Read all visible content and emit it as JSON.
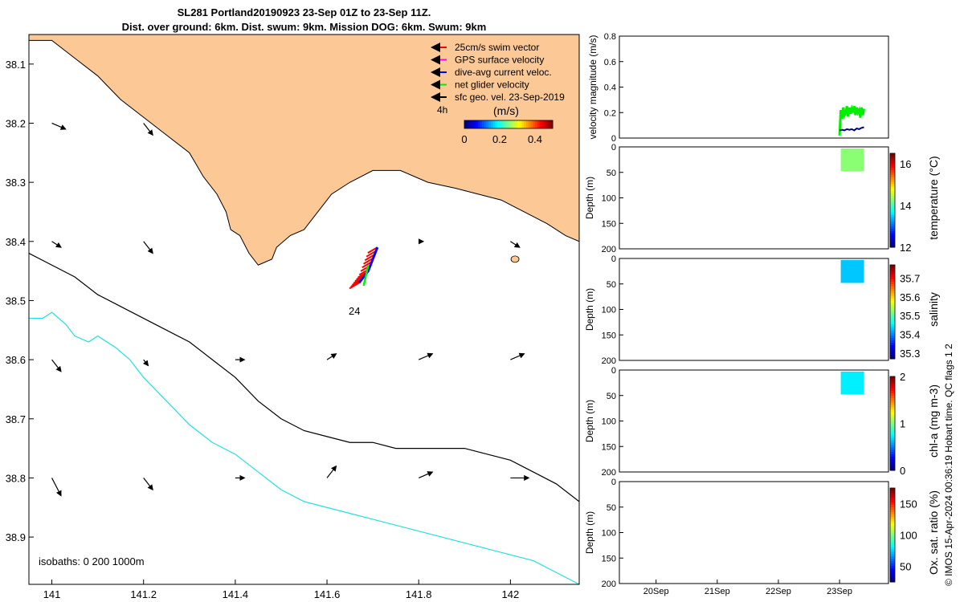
{
  "title_line1": "SL281 Portland20190923 23-Sep 01Z to 23-Sep 11Z.",
  "title_line2": "Dist. over ground: 6km. Dist. swum: 9km. Mission DOG: 6km. Swum: 9km",
  "stamp": "© IMOS 15-Apr-2024 00:36:19 Hobart time. QC flags 1  2",
  "colors": {
    "land": "#fcc896",
    "swim": "#ff0000",
    "gps": "#ff00ff",
    "dac": "#0000ff",
    "net": "#00ee00",
    "geo": "#000000",
    "isobath200": "#000000",
    "isobath1000": "#22e0e0"
  },
  "chart_data": [
    {
      "type": "map",
      "xlim": [
        140.95,
        142.15
      ],
      "ylim": [
        38.05,
        38.98
      ],
      "y_reversed": true,
      "xticks": [
        "141",
        "141.2",
        "141.4",
        "141.6",
        "141.8",
        "142"
      ],
      "yticks": [
        "38.1",
        "38.2",
        "38.3",
        "38.4",
        "38.5",
        "38.6",
        "38.7",
        "38.8",
        "38.9"
      ],
      "legend": [
        "25cm/s swim vector",
        "GPS surface velocity",
        "dive-avg current veloc.",
        "net glider velocity",
        "sfc geo. vel. 23-Sep-2019"
      ],
      "legend_extra": "4h",
      "colorbar_label": "(m/s)",
      "colorbar_ticks": [
        "0",
        "0.2",
        "0.4"
      ],
      "track_label": "24",
      "isobath_label": "isobaths: 0   200  1000m",
      "coast": [
        [
          140.95,
          38.06
        ],
        [
          141.0,
          38.06
        ],
        [
          141.05,
          38.09
        ],
        [
          141.1,
          38.12
        ],
        [
          141.15,
          38.16
        ],
        [
          141.2,
          38.19
        ],
        [
          141.25,
          38.22
        ],
        [
          141.3,
          38.25
        ],
        [
          141.33,
          38.29
        ],
        [
          141.36,
          38.32
        ],
        [
          141.38,
          38.35
        ],
        [
          141.39,
          38.38
        ],
        [
          141.41,
          38.39
        ],
        [
          141.43,
          38.42
        ],
        [
          141.45,
          38.44
        ],
        [
          141.48,
          38.43
        ],
        [
          141.49,
          38.41
        ],
        [
          141.52,
          38.39
        ],
        [
          141.55,
          38.38
        ],
        [
          141.58,
          38.35
        ],
        [
          141.61,
          38.32
        ],
        [
          141.65,
          38.3
        ],
        [
          141.7,
          38.28
        ],
        [
          141.76,
          38.28
        ],
        [
          141.82,
          38.3
        ],
        [
          141.88,
          38.31
        ],
        [
          141.93,
          38.32
        ],
        [
          141.98,
          38.33
        ],
        [
          142.03,
          38.35
        ],
        [
          142.08,
          38.37
        ],
        [
          142.12,
          38.39
        ],
        [
          142.15,
          38.4
        ]
      ],
      "isobath_200": [
        [
          140.95,
          38.42
        ],
        [
          141.0,
          38.44
        ],
        [
          141.05,
          38.46
        ],
        [
          141.1,
          38.49
        ],
        [
          141.15,
          38.51
        ],
        [
          141.2,
          38.53
        ],
        [
          141.25,
          38.55
        ],
        [
          141.3,
          38.57
        ],
        [
          141.35,
          38.6
        ],
        [
          141.4,
          38.63
        ],
        [
          141.45,
          38.67
        ],
        [
          141.5,
          38.7
        ],
        [
          141.55,
          38.72
        ],
        [
          141.6,
          38.73
        ],
        [
          141.65,
          38.74
        ],
        [
          141.7,
          38.74
        ],
        [
          141.75,
          38.75
        ],
        [
          141.8,
          38.75
        ],
        [
          141.85,
          38.75
        ],
        [
          141.9,
          38.75
        ],
        [
          141.95,
          38.76
        ],
        [
          142.0,
          38.77
        ],
        [
          142.05,
          38.79
        ],
        [
          142.1,
          38.81
        ],
        [
          142.15,
          38.84
        ]
      ],
      "isobath_1000": [
        [
          140.95,
          38.53
        ],
        [
          140.98,
          38.53
        ],
        [
          141.0,
          38.52
        ],
        [
          141.03,
          38.54
        ],
        [
          141.05,
          38.56
        ],
        [
          141.08,
          38.57
        ],
        [
          141.1,
          38.56
        ],
        [
          141.14,
          38.58
        ],
        [
          141.17,
          38.6
        ],
        [
          141.2,
          38.63
        ],
        [
          141.25,
          38.67
        ],
        [
          141.3,
          38.71
        ],
        [
          141.35,
          38.74
        ],
        [
          141.4,
          38.76
        ],
        [
          141.45,
          38.79
        ],
        [
          141.5,
          38.82
        ],
        [
          141.55,
          38.84
        ],
        [
          141.6,
          38.85
        ],
        [
          141.65,
          38.86
        ],
        [
          141.7,
          38.87
        ],
        [
          141.75,
          38.88
        ],
        [
          141.8,
          38.89
        ],
        [
          141.85,
          38.9
        ],
        [
          141.9,
          38.91
        ],
        [
          141.95,
          38.92
        ],
        [
          142.0,
          38.93
        ],
        [
          142.05,
          38.94
        ],
        [
          142.1,
          38.96
        ],
        [
          142.15,
          38.98
        ]
      ],
      "geo_vectors": [
        [
          141.0,
          38.2,
          0.03,
          0.01
        ],
        [
          141.2,
          38.2,
          0.02,
          0.02
        ],
        [
          141.0,
          38.4,
          0.02,
          0.01
        ],
        [
          141.2,
          38.4,
          0.02,
          0.02
        ],
        [
          141.8,
          38.4,
          0.01,
          0.0
        ],
        [
          142.0,
          38.4,
          0.02,
          0.01
        ],
        [
          141.0,
          38.6,
          0.02,
          0.02
        ],
        [
          141.2,
          38.6,
          0.01,
          0.01
        ],
        [
          141.4,
          38.6,
          0.02,
          0.0
        ],
        [
          141.6,
          38.6,
          0.02,
          -0.01
        ],
        [
          141.8,
          38.6,
          0.03,
          -0.01
        ],
        [
          142.0,
          38.6,
          0.03,
          -0.01
        ],
        [
          141.0,
          38.8,
          0.02,
          0.03
        ],
        [
          141.2,
          38.8,
          0.02,
          0.02
        ],
        [
          141.4,
          38.8,
          0.02,
          0.0
        ],
        [
          141.6,
          38.8,
          0.02,
          -0.02
        ],
        [
          141.8,
          38.8,
          0.03,
          -0.01
        ],
        [
          142.0,
          38.8,
          0.04,
          0.0
        ]
      ],
      "glider_track": [
        [
          141.71,
          38.41
        ],
        [
          141.7,
          38.43
        ],
        [
          141.69,
          38.45
        ],
        [
          141.68,
          38.46
        ],
        [
          141.67,
          38.47
        ]
      ]
    },
    {
      "type": "line",
      "ylabel": "velocity magnitude (m/s)",
      "ylim": [
        0,
        0.8
      ],
      "yticks": [
        "0",
        "0.2",
        "0.4",
        "0.6",
        "0.8"
      ],
      "xlim": [
        19.4,
        23.8
      ],
      "series": [
        {
          "color": "#00ee00",
          "x": [
            23.0,
            23.02,
            23.04,
            23.06,
            23.08,
            23.1,
            23.12,
            23.14,
            23.16,
            23.18,
            23.2,
            23.22,
            23.24,
            23.26,
            23.28,
            23.3,
            23.32,
            23.34,
            23.36,
            23.38,
            23.4
          ],
          "y": [
            0.02,
            0.22,
            0.15,
            0.24,
            0.18,
            0.2,
            0.25,
            0.17,
            0.24,
            0.19,
            0.23,
            0.2,
            0.25,
            0.18,
            0.24,
            0.2,
            0.22,
            0.16,
            0.24,
            0.18,
            0.23
          ]
        },
        {
          "color": "#000080",
          "x": [
            23.0,
            23.04,
            23.08,
            23.12,
            23.16,
            23.2,
            23.24,
            23.28,
            23.32,
            23.36,
            23.4
          ],
          "y": [
            0.06,
            0.065,
            0.06,
            0.07,
            0.065,
            0.07,
            0.06,
            0.075,
            0.07,
            0.08,
            0.085
          ]
        }
      ]
    },
    {
      "type": "heatmap",
      "ylabel": "Depth (m)",
      "ylim": [
        200,
        0
      ],
      "yticks": [
        "0",
        "50",
        "100",
        "150",
        "200"
      ],
      "colorbar_label": "temperature (°C)",
      "colorbar_ticks": [
        "12",
        "14",
        "16"
      ],
      "clim": [
        12,
        16.5
      ],
      "x_range": [
        23.02,
        23.4
      ],
      "depth_range": [
        3,
        48
      ],
      "value": 14.3
    },
    {
      "type": "heatmap",
      "ylabel": "Depth (m)",
      "ylim": [
        200,
        0
      ],
      "yticks": [
        "0",
        "50",
        "100",
        "150",
        "200"
      ],
      "colorbar_label": "salinity",
      "colorbar_ticks": [
        "35.3",
        "35.4",
        "35.5",
        "35.6",
        "35.7"
      ],
      "clim": [
        35.27,
        35.77
      ],
      "x_range": [
        23.02,
        23.4
      ],
      "depth_range": [
        3,
        48
      ],
      "value": 35.43
    },
    {
      "type": "heatmap",
      "ylabel": "Depth (m)",
      "ylim": [
        200,
        0
      ],
      "yticks": [
        "0",
        "50",
        "100",
        "150",
        "200"
      ],
      "colorbar_label": "chl-a (mg m-3)",
      "colorbar_ticks": [
        "0",
        "1",
        "2"
      ],
      "clim": [
        0,
        2
      ],
      "x_range": [
        23.02,
        23.4
      ],
      "depth_range": [
        3,
        48
      ],
      "value": 0.72
    },
    {
      "type": "heatmap",
      "ylabel": "Depth (m)",
      "ylim": [
        200,
        0
      ],
      "yticks": [
        "0",
        "50",
        "100",
        "150",
        "200"
      ],
      "colorbar_label": "Ox. sat. ratio (%)",
      "colorbar_ticks": [
        "50",
        "100",
        "150"
      ],
      "clim": [
        25,
        175
      ],
      "xticks": [
        "20Sep",
        "21Sep",
        "22Sep",
        "23Sep"
      ],
      "xlim": [
        19.4,
        23.8
      ]
    }
  ]
}
